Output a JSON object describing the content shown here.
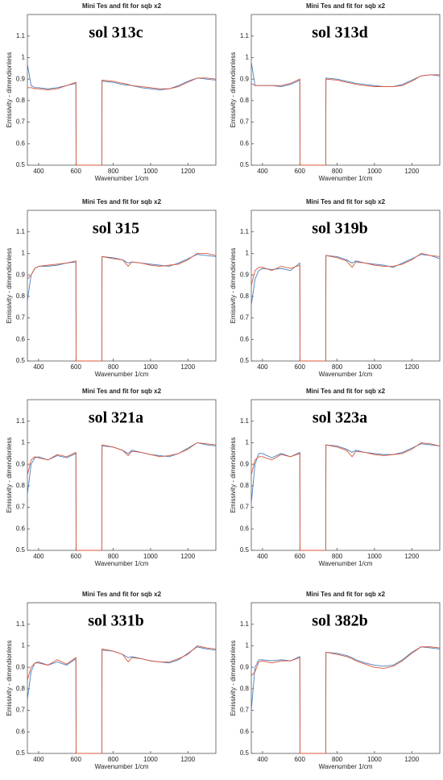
{
  "chart_data": [
    {
      "type": "line",
      "title": "Mini Tes and fit for sqb x2",
      "annotation": "sol 313c",
      "xlabel": "Wavenumber 1/cm",
      "ylabel": "Emissivity - dimendionless",
      "x": [
        340,
        360,
        380,
        400,
        450,
        500,
        550,
        600,
        601,
        739,
        740,
        800,
        850,
        880,
        900,
        950,
        1000,
        1050,
        1100,
        1150,
        1200,
        1250,
        1300,
        1350
      ],
      "xlim": [
        340,
        1350
      ],
      "ylim": [
        0.5,
        1.2
      ],
      "xticks": [
        400,
        600,
        800,
        1000,
        1200
      ],
      "yticks": [
        0.5,
        0.6,
        0.7,
        0.8,
        0.9,
        1,
        1.1
      ],
      "series": [
        {
          "color": "#4a7fc1",
          "values": [
            0.97,
            0.87,
            0.86,
            0.86,
            0.855,
            0.86,
            0.87,
            0.88,
            0.5,
            0.5,
            0.89,
            0.885,
            0.875,
            0.872,
            0.87,
            0.86,
            0.855,
            0.85,
            0.855,
            0.87,
            0.89,
            0.905,
            0.9,
            0.895
          ]
        },
        {
          "color": "#d9573a",
          "values": [
            0.86,
            0.86,
            0.855,
            0.855,
            0.85,
            0.855,
            0.87,
            0.885,
            0.5,
            0.5,
            0.895,
            0.89,
            0.88,
            0.875,
            0.87,
            0.865,
            0.86,
            0.855,
            0.855,
            0.865,
            0.885,
            0.905,
            0.905,
            0.9
          ]
        }
      ]
    },
    {
      "type": "line",
      "title": "Mini Tes and fit for sqb x2",
      "annotation": "sol 313d",
      "xlabel": "Wavenumber 1/cm",
      "ylabel": "Emissivity - dimendionless",
      "x": [
        340,
        360,
        380,
        400,
        450,
        500,
        550,
        600,
        601,
        739,
        740,
        800,
        850,
        880,
        900,
        950,
        1000,
        1050,
        1100,
        1150,
        1200,
        1250,
        1300,
        1350
      ],
      "xlim": [
        340,
        1350
      ],
      "ylim": [
        0.5,
        1.2
      ],
      "xticks": [
        400,
        600,
        800,
        1000,
        1200
      ],
      "yticks": [
        0.5,
        0.6,
        0.7,
        0.8,
        0.9,
        1,
        1.1
      ],
      "series": [
        {
          "color": "#4a7fc1",
          "values": [
            0.98,
            0.87,
            0.87,
            0.87,
            0.87,
            0.865,
            0.875,
            0.895,
            0.5,
            0.5,
            0.905,
            0.9,
            0.89,
            0.885,
            0.88,
            0.875,
            0.87,
            0.865,
            0.865,
            0.875,
            0.895,
            0.915,
            0.92,
            0.915
          ]
        },
        {
          "color": "#d9573a",
          "values": [
            0.88,
            0.87,
            0.87,
            0.87,
            0.87,
            0.87,
            0.88,
            0.9,
            0.5,
            0.5,
            0.9,
            0.895,
            0.885,
            0.88,
            0.875,
            0.87,
            0.865,
            0.865,
            0.865,
            0.87,
            0.89,
            0.915,
            0.92,
            0.92
          ]
        }
      ]
    },
    {
      "type": "line",
      "title": "Mini Tes and fit for sqb x2",
      "annotation": "sol 315",
      "xlabel": "Wavenumber 1/cm",
      "ylabel": "Emissivity - dimendionless",
      "x": [
        340,
        360,
        380,
        400,
        450,
        500,
        550,
        600,
        601,
        739,
        740,
        800,
        850,
        880,
        900,
        950,
        1000,
        1050,
        1100,
        1150,
        1200,
        1250,
        1300,
        1350
      ],
      "xlim": [
        340,
        1350
      ],
      "ylim": [
        0.5,
        1.2
      ],
      "xticks": [
        400,
        600,
        800,
        1000,
        1200
      ],
      "yticks": [
        0.5,
        0.6,
        0.7,
        0.8,
        0.9,
        1,
        1.1
      ],
      "series": [
        {
          "color": "#4a7fc1",
          "values": [
            0.78,
            0.9,
            0.93,
            0.94,
            0.94,
            0.945,
            0.955,
            0.96,
            0.5,
            0.5,
            0.985,
            0.98,
            0.97,
            0.955,
            0.96,
            0.955,
            0.95,
            0.945,
            0.94,
            0.955,
            0.975,
            0.995,
            0.99,
            0.985
          ]
        },
        {
          "color": "#d9573a",
          "values": [
            0.88,
            0.9,
            0.93,
            0.94,
            0.945,
            0.95,
            0.955,
            0.965,
            0.5,
            0.5,
            0.985,
            0.975,
            0.97,
            0.94,
            0.96,
            0.955,
            0.945,
            0.94,
            0.945,
            0.95,
            0.97,
            1.0,
            1.0,
            0.99
          ]
        }
      ]
    },
    {
      "type": "line",
      "title": "Mini Tes and fit for sqb x2",
      "annotation": "sol 319b",
      "xlabel": "Wavenumber 1/cm",
      "ylabel": "Emissivity - dimendionless",
      "x": [
        340,
        360,
        380,
        400,
        450,
        500,
        550,
        600,
        601,
        739,
        740,
        800,
        850,
        880,
        900,
        950,
        1000,
        1050,
        1100,
        1150,
        1200,
        1250,
        1300,
        1350
      ],
      "xlim": [
        340,
        1350
      ],
      "ylim": [
        0.5,
        1.2
      ],
      "xticks": [
        400,
        600,
        800,
        1000,
        1200
      ],
      "yticks": [
        0.5,
        0.6,
        0.7,
        0.8,
        0.9,
        1,
        1.1
      ],
      "series": [
        {
          "color": "#4a7fc1",
          "values": [
            0.76,
            0.88,
            0.92,
            0.93,
            0.925,
            0.93,
            0.92,
            0.955,
            0.5,
            0.5,
            0.99,
            0.985,
            0.97,
            0.955,
            0.965,
            0.955,
            0.95,
            0.945,
            0.935,
            0.955,
            0.975,
            0.995,
            0.99,
            0.975
          ]
        },
        {
          "color": "#d9573a",
          "values": [
            0.85,
            0.92,
            0.935,
            0.935,
            0.92,
            0.94,
            0.93,
            0.945,
            0.5,
            0.5,
            0.99,
            0.98,
            0.965,
            0.935,
            0.96,
            0.955,
            0.945,
            0.94,
            0.94,
            0.95,
            0.97,
            1.0,
            0.99,
            0.985
          ]
        }
      ]
    },
    {
      "type": "line",
      "title": "Mini Tes and fit for sqb x2",
      "annotation": "sol 321a",
      "xlabel": "Wavenumber 1/cm",
      "ylabel": "Emissivity - dimendionless",
      "x": [
        340,
        360,
        380,
        400,
        450,
        500,
        550,
        600,
        601,
        739,
        740,
        800,
        850,
        880,
        900,
        950,
        1000,
        1050,
        1100,
        1150,
        1200,
        1250,
        1300,
        1350
      ],
      "xlim": [
        340,
        1350
      ],
      "ylim": [
        0.5,
        1.2
      ],
      "xticks": [
        400,
        600,
        800,
        1000,
        1200
      ],
      "yticks": [
        0.5,
        0.6,
        0.7,
        0.8,
        0.9,
        1,
        1.1
      ],
      "series": [
        {
          "color": "#4a7fc1",
          "values": [
            0.76,
            0.9,
            0.93,
            0.935,
            0.92,
            0.94,
            0.93,
            0.95,
            0.5,
            0.5,
            0.985,
            0.98,
            0.965,
            0.95,
            0.965,
            0.955,
            0.945,
            0.94,
            0.935,
            0.95,
            0.975,
            1.0,
            0.99,
            0.985
          ]
        },
        {
          "color": "#d9573a",
          "values": [
            0.85,
            0.92,
            0.935,
            0.93,
            0.92,
            0.945,
            0.935,
            0.955,
            0.5,
            0.5,
            0.99,
            0.98,
            0.965,
            0.94,
            0.96,
            0.955,
            0.945,
            0.935,
            0.94,
            0.95,
            0.97,
            1.0,
            0.995,
            0.99
          ]
        }
      ]
    },
    {
      "type": "line",
      "title": "Mini Tes and fit for sqb x2",
      "annotation": "sol 323a",
      "xlabel": "Wavenumber 1/cm",
      "ylabel": "Emissivity - dimendionless",
      "x": [
        340,
        360,
        380,
        400,
        450,
        500,
        550,
        600,
        601,
        739,
        740,
        800,
        850,
        880,
        900,
        950,
        1000,
        1050,
        1100,
        1150,
        1200,
        1250,
        1300,
        1350
      ],
      "xlim": [
        340,
        1350
      ],
      "ylim": [
        0.5,
        1.2
      ],
      "xticks": [
        400,
        600,
        800,
        1000,
        1200
      ],
      "yticks": [
        0.5,
        0.6,
        0.7,
        0.8,
        0.9,
        1,
        1.1
      ],
      "series": [
        {
          "color": "#4a7fc1",
          "values": [
            0.72,
            0.9,
            0.95,
            0.95,
            0.93,
            0.95,
            0.935,
            0.955,
            0.5,
            0.5,
            0.99,
            0.985,
            0.97,
            0.955,
            0.965,
            0.955,
            0.95,
            0.945,
            0.945,
            0.955,
            0.975,
            0.995,
            0.99,
            0.985
          ]
        },
        {
          "color": "#d9573a",
          "values": [
            0.85,
            0.92,
            0.935,
            0.935,
            0.92,
            0.945,
            0.935,
            0.95,
            0.5,
            0.5,
            0.99,
            0.98,
            0.965,
            0.935,
            0.96,
            0.955,
            0.945,
            0.94,
            0.945,
            0.95,
            0.97,
            1.0,
            0.995,
            0.985
          ]
        }
      ]
    },
    {
      "type": "line",
      "title": "Mini Tes and fit for sqb x2",
      "annotation": "sol 331b",
      "xlabel": "Wavenumber 1/cm",
      "ylabel": "Emissivity - dimendionless",
      "x": [
        340,
        360,
        380,
        400,
        450,
        500,
        550,
        600,
        601,
        739,
        740,
        800,
        850,
        880,
        900,
        950,
        1000,
        1050,
        1100,
        1150,
        1200,
        1250,
        1300,
        1350
      ],
      "xlim": [
        340,
        1350
      ],
      "ylim": [
        0.5,
        1.2
      ],
      "xticks": [
        400,
        600,
        800,
        1000,
        1200
      ],
      "yticks": [
        0.5,
        0.6,
        0.7,
        0.8,
        0.9,
        1,
        1.1
      ],
      "series": [
        {
          "color": "#4a7fc1",
          "values": [
            0.75,
            0.88,
            0.92,
            0.925,
            0.91,
            0.925,
            0.91,
            0.94,
            0.5,
            0.5,
            0.98,
            0.975,
            0.96,
            0.945,
            0.95,
            0.94,
            0.93,
            0.925,
            0.92,
            0.935,
            0.965,
            0.995,
            0.985,
            0.98
          ]
        },
        {
          "color": "#d9573a",
          "values": [
            0.84,
            0.9,
            0.92,
            0.92,
            0.91,
            0.935,
            0.915,
            0.945,
            0.5,
            0.5,
            0.985,
            0.975,
            0.96,
            0.925,
            0.945,
            0.94,
            0.93,
            0.925,
            0.925,
            0.94,
            0.96,
            1.0,
            0.99,
            0.985
          ]
        }
      ]
    },
    {
      "type": "line",
      "title": "Mini Tes and fit for sqb x2",
      "annotation": "sol 382b",
      "xlabel": "Wavenumber 1/cm",
      "ylabel": "Emissivity - dimendionless",
      "x": [
        340,
        360,
        380,
        400,
        450,
        500,
        550,
        600,
        601,
        739,
        740,
        800,
        850,
        880,
        900,
        950,
        1000,
        1050,
        1100,
        1150,
        1200,
        1250,
        1300,
        1350
      ],
      "xlim": [
        340,
        1350
      ],
      "ylim": [
        0.5,
        1.2
      ],
      "xticks": [
        400,
        600,
        800,
        1000,
        1200
      ],
      "yticks": [
        0.5,
        0.6,
        0.7,
        0.8,
        0.9,
        1,
        1.1
      ],
      "series": [
        {
          "color": "#4a7fc1",
          "values": [
            0.7,
            0.9,
            0.935,
            0.935,
            0.93,
            0.935,
            0.93,
            0.95,
            0.5,
            0.5,
            0.97,
            0.965,
            0.955,
            0.945,
            0.935,
            0.92,
            0.91,
            0.905,
            0.91,
            0.935,
            0.97,
            0.995,
            0.99,
            0.985
          ]
        },
        {
          "color": "#d9573a",
          "values": [
            0.86,
            0.88,
            0.925,
            0.93,
            0.92,
            0.93,
            0.93,
            0.945,
            0.5,
            0.5,
            0.97,
            0.96,
            0.95,
            0.94,
            0.93,
            0.915,
            0.9,
            0.895,
            0.905,
            0.93,
            0.965,
            0.995,
            0.995,
            0.99
          ]
        }
      ]
    }
  ]
}
